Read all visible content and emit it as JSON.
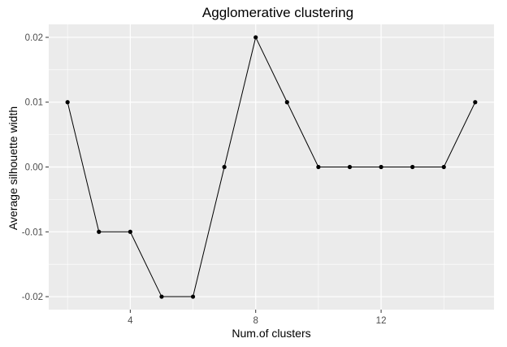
{
  "chart_data": {
    "type": "line",
    "title": "Agglomerative clustering",
    "xlabel": "Num.of clusters",
    "ylabel": "Average silhouette width",
    "x": [
      2,
      3,
      4,
      5,
      6,
      7,
      8,
      9,
      10,
      11,
      12,
      13,
      14,
      15
    ],
    "series": [
      {
        "values": [
          0.01,
          -0.01,
          -0.01,
          -0.02,
          -0.02,
          0.0,
          0.02,
          0.01,
          0.0,
          0.0,
          0.0,
          0.0,
          0.0,
          0.01
        ]
      }
    ],
    "xlim": [
      1.4,
      15.6
    ],
    "ylim": [
      -0.022,
      0.022
    ],
    "x_ticks": [
      4,
      8,
      12
    ],
    "y_ticks": [
      -0.02,
      -0.01,
      0.0,
      0.01,
      0.02
    ],
    "x_tick_labels": [
      "4",
      "8",
      "12"
    ],
    "y_tick_labels": [
      "-0.02",
      "-0.01",
      "0.00",
      "0.01",
      "0.02"
    ],
    "grid": true,
    "panel_color": "#ebebeb",
    "grid_color": "#ffffff",
    "line_color": "#000000",
    "point_color": "#000000",
    "tick_label_color": "#4d4d4d",
    "tick_color": "#333333"
  }
}
